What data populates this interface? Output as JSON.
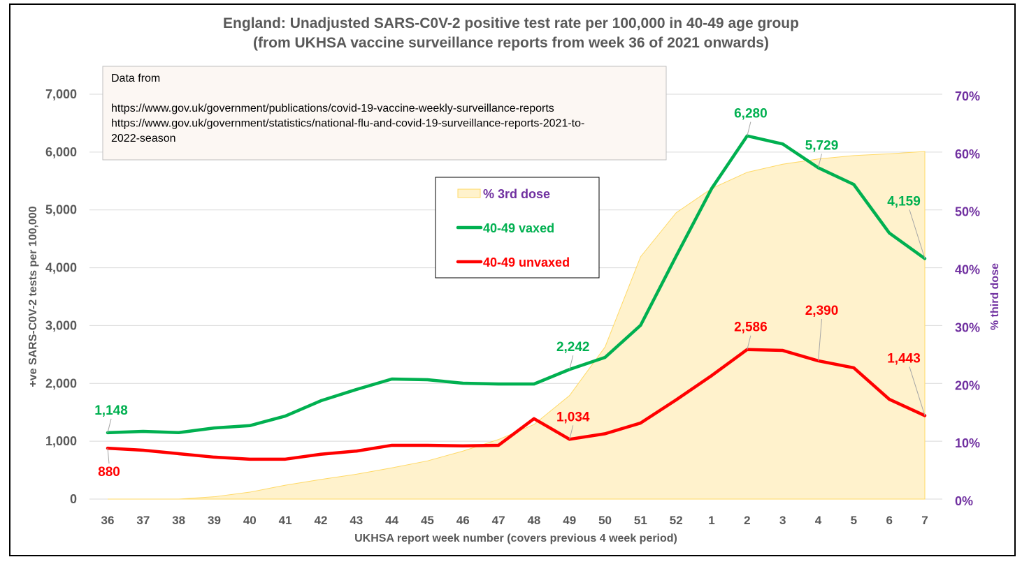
{
  "chart_data": {
    "type": "line",
    "title": "England: Unadjusted SARS-C0V-2 positive test rate per 100,000 in 40-49 age group",
    "subtitle": "(from UKHSA vaccine surveillance reports from week 36 of 2021 onwards)",
    "xlabel": "UKHSA report week number (covers previous 4 week period)",
    "ylabel": "+ve SARS-C0V-2 tests per 100,000",
    "y2label": "% third dose",
    "ylim": [
      0,
      7000
    ],
    "y2lim": [
      0,
      70
    ],
    "yticks": [
      "0",
      "1,000",
      "2,000",
      "3,000",
      "4,000",
      "5,000",
      "6,000",
      "7,000"
    ],
    "y2ticks": [
      "0%",
      "10%",
      "20%",
      "30%",
      "40%",
      "50%",
      "60%",
      "70%"
    ],
    "grid": true,
    "legend_position": "center",
    "categories": [
      "36",
      "37",
      "38",
      "39",
      "40",
      "41",
      "42",
      "43",
      "44",
      "45",
      "46",
      "47",
      "48",
      "49",
      "50",
      "51",
      "52",
      "1",
      "2",
      "3",
      "4",
      "5",
      "6",
      "7"
    ],
    "series": [
      {
        "name": "% 3rd dose",
        "type": "area",
        "axis": "right",
        "color": "#fff2cc",
        "edge_color": "#ffd966",
        "values": [
          0,
          0,
          0,
          0.4,
          1.2,
          2.4,
          3.4,
          4.3,
          5.4,
          6.6,
          8.3,
          10.3,
          12.9,
          17.9,
          26.3,
          41.9,
          49.5,
          53.7,
          56.5,
          57.9,
          58.8,
          59.4,
          59.7,
          60.1
        ]
      },
      {
        "name": "40-49 vaxed",
        "type": "line",
        "axis": "left",
        "color": "#00b050",
        "values": [
          1148,
          1171,
          1150,
          1230,
          1270,
          1436,
          1700,
          1895,
          2076,
          2064,
          2003,
          1990,
          1990,
          2242,
          2450,
          3005,
          4200,
          5370,
          6280,
          6140,
          5729,
          5440,
          4600,
          4159
        ]
      },
      {
        "name": "40-49 unvaxed",
        "type": "line",
        "axis": "left",
        "color": "#ff0000",
        "values": [
          880,
          845,
          785,
          725,
          690,
          690,
          775,
          830,
          930,
          930,
          920,
          930,
          1390,
          1034,
          1130,
          1315,
          1715,
          2135,
          2586,
          2570,
          2390,
          2270,
          1725,
          1443
        ]
      }
    ],
    "data_labels": [
      {
        "series": "40-49 vaxed",
        "category": "36",
        "text": "1,148",
        "pos": "above"
      },
      {
        "series": "40-49 vaxed",
        "category": "49",
        "text": "2,242",
        "pos": "above"
      },
      {
        "series": "40-49 vaxed",
        "category": "2",
        "text": "6,280",
        "pos": "above"
      },
      {
        "series": "40-49 vaxed",
        "category": "4",
        "text": "5,729",
        "pos": "above"
      },
      {
        "series": "40-49 vaxed",
        "category": "7",
        "text": "4,159",
        "pos": "above-far"
      },
      {
        "series": "40-49 unvaxed",
        "category": "36",
        "text": "880",
        "pos": "below"
      },
      {
        "series": "40-49 unvaxed",
        "category": "49",
        "text": "1,034",
        "pos": "above"
      },
      {
        "series": "40-49 unvaxed",
        "category": "2",
        "text": "2,586",
        "pos": "above"
      },
      {
        "series": "40-49 unvaxed",
        "category": "4",
        "text": "2,390",
        "pos": "above-far"
      },
      {
        "series": "40-49 unvaxed",
        "category": "7",
        "text": "1,443",
        "pos": "above-far"
      }
    ],
    "annotation": {
      "lines": [
        "Data from",
        "",
        "https://www.gov.uk/government/publications/covid-19-vaccine-weekly-surveillance-reports",
        "https://www.gov.uk/government/statistics/national-flu-and-covid-19-surveillance-reports-2021-to-",
        "2022-season"
      ]
    },
    "legend": [
      {
        "label": "% 3rd dose",
        "color": "#7030a0",
        "swatch": "area"
      },
      {
        "label": "40-49 vaxed",
        "color": "#00b050",
        "swatch": "line"
      },
      {
        "label": "40-49 unvaxed",
        "color": "#ff0000",
        "swatch": "line"
      }
    ]
  }
}
